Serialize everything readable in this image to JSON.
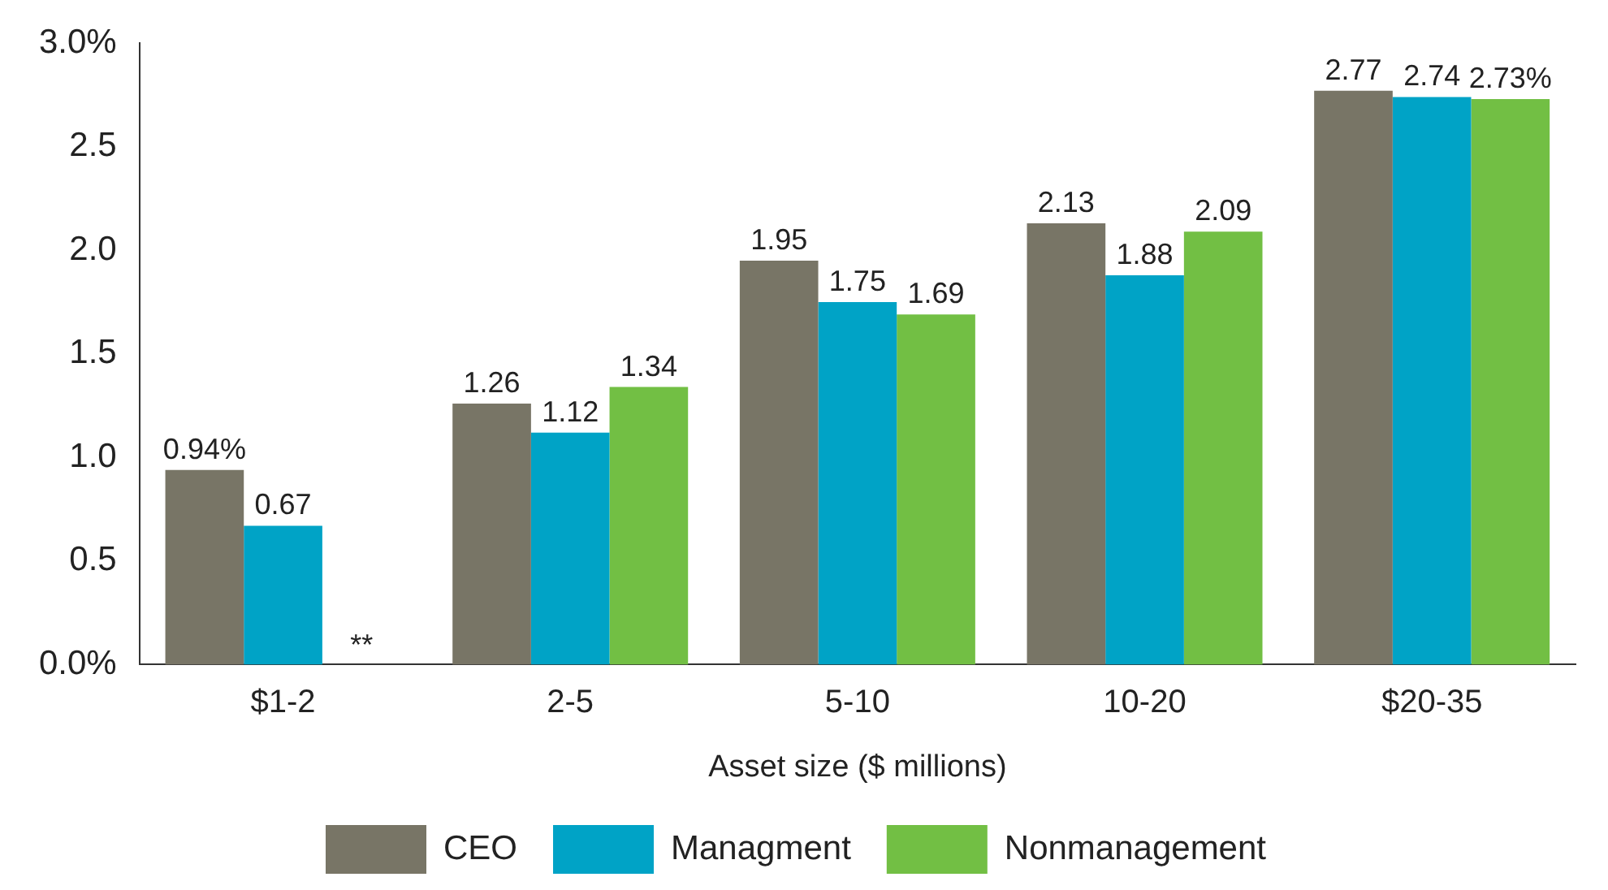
{
  "chart_data": {
    "type": "bar",
    "xlabel": "Asset size ($ millions)",
    "categories": [
      "$1-2",
      "2-5",
      "5-10",
      "10-20",
      "$20-35"
    ],
    "series": [
      {
        "name": "CEO",
        "color": "#787566",
        "values": [
          0.94,
          1.26,
          1.95,
          2.13,
          2.77
        ],
        "value_labels": [
          "0.94%",
          "1.26",
          "1.95",
          "2.13",
          "2.77"
        ]
      },
      {
        "name": "Managment",
        "color": "#00a3c6",
        "values": [
          0.67,
          1.12,
          1.75,
          1.88,
          2.74
        ],
        "value_labels": [
          "0.67",
          "1.12",
          "1.75",
          "1.88",
          "2.74"
        ]
      },
      {
        "name": "Nonmanagement",
        "color": "#72bf44",
        "values": [
          null,
          1.34,
          1.69,
          2.09,
          2.73
        ],
        "value_labels": [
          "**",
          "1.34",
          "1.69",
          "2.09",
          "2.73%"
        ]
      }
    ],
    "ylim": [
      0,
      3
    ],
    "yticks": [
      {
        "value": 0,
        "label": "0.0%"
      },
      0.5,
      {
        "value": 1,
        "label": "1.0"
      },
      1.5,
      {
        "value": 2,
        "label": "2.0"
      },
      2.5,
      {
        "value": 3,
        "label": "3.0%"
      }
    ],
    "grid": false,
    "legend": "bottom"
  }
}
